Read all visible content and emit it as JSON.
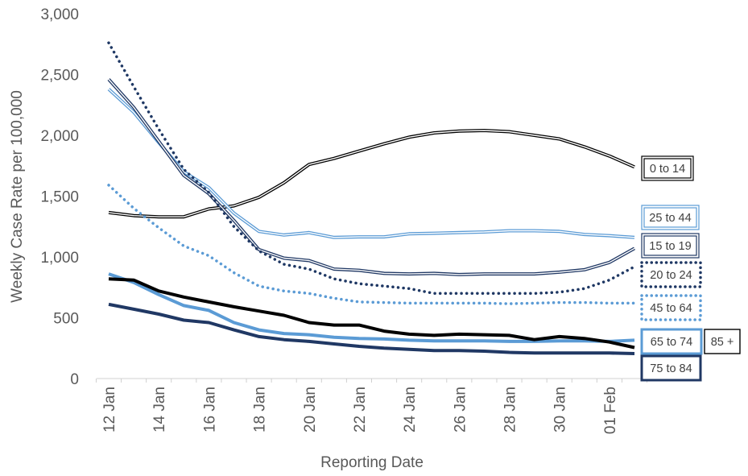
{
  "chart_data": {
    "type": "line",
    "title": "",
    "xlabel": "Reporting Date",
    "ylabel": "Weekly Case Rate per 100,000",
    "ylim": [
      0,
      3000
    ],
    "y_ticks": [
      "0",
      "500",
      "1,000",
      "1,500",
      "2,000",
      "2,500",
      "3,000"
    ],
    "x_tick_labels": [
      "12 Jan",
      "14 Jan",
      "16 Jan",
      "18 Jan",
      "20 Jan",
      "22 Jan",
      "24 Jan",
      "26 Jan",
      "28 Jan",
      "30 Jan",
      "01 Feb"
    ],
    "x": [
      "12 Jan",
      "13 Jan",
      "14 Jan",
      "15 Jan",
      "16 Jan",
      "17 Jan",
      "18 Jan",
      "19 Jan",
      "20 Jan",
      "21 Jan",
      "22 Jan",
      "23 Jan",
      "24 Jan",
      "25 Jan",
      "26 Jan",
      "27 Jan",
      "28 Jan",
      "29 Jan",
      "30 Jan",
      "31 Jan",
      "01 Feb",
      "02 Feb"
    ],
    "grid": false,
    "legend": "end-of-line labels",
    "series": [
      {
        "name": "0 to 14",
        "color": "#000000",
        "style": "double",
        "values": [
          1365,
          1340,
          1330,
          1330,
          1395,
          1420,
          1490,
          1610,
          1760,
          1810,
          1870,
          1930,
          1985,
          2020,
          2035,
          2040,
          2030,
          2000,
          1970,
          1905,
          1830,
          1740
        ]
      },
      {
        "name": "25 to 44",
        "color": "#5b9bd5",
        "style": "double",
        "values": [
          2380,
          2190,
          1940,
          1700,
          1570,
          1360,
          1210,
          1180,
          1200,
          1160,
          1165,
          1165,
          1190,
          1195,
          1200,
          1205,
          1215,
          1215,
          1210,
          1185,
          1175,
          1160
        ]
      },
      {
        "name": "15 to 19",
        "color": "#203864",
        "style": "double",
        "values": [
          2460,
          2230,
          1950,
          1670,
          1520,
          1300,
          1060,
          990,
          970,
          900,
          890,
          865,
          860,
          865,
          855,
          860,
          860,
          860,
          875,
          895,
          955,
          1070
        ]
      },
      {
        "name": "20 to 24",
        "color": "#1f3864",
        "style": "dotted",
        "values": [
          2760,
          2400,
          2050,
          1720,
          1530,
          1250,
          1050,
          940,
          900,
          820,
          780,
          760,
          740,
          700,
          700,
          700,
          700,
          700,
          710,
          740,
          810,
          920
        ]
      },
      {
        "name": "45 to 64",
        "color": "#5b9bd5",
        "style": "dotted",
        "values": [
          1590,
          1400,
          1240,
          1090,
          1010,
          870,
          760,
          720,
          700,
          660,
          630,
          625,
          620,
          620,
          620,
          620,
          615,
          620,
          625,
          625,
          620,
          620
        ]
      },
      {
        "name": "65 to 74",
        "color": "#5b9bd5",
        "style": "solid",
        "values": [
          860,
          790,
          690,
          600,
          560,
          460,
          400,
          370,
          360,
          340,
          330,
          325,
          315,
          310,
          310,
          310,
          305,
          305,
          310,
          310,
          305,
          315
        ]
      },
      {
        "name": "85 +",
        "color": "#000000",
        "style": "solid",
        "values": [
          820,
          810,
          720,
          670,
          630,
          590,
          555,
          520,
          460,
          440,
          440,
          390,
          365,
          355,
          365,
          360,
          355,
          320,
          345,
          330,
          300,
          255
        ]
      },
      {
        "name": "75 to 84",
        "color": "#203864",
        "style": "solid",
        "values": [
          610,
          570,
          530,
          480,
          460,
          400,
          345,
          320,
          305,
          285,
          265,
          250,
          240,
          230,
          230,
          225,
          215,
          210,
          210,
          210,
          210,
          205
        ]
      }
    ]
  }
}
